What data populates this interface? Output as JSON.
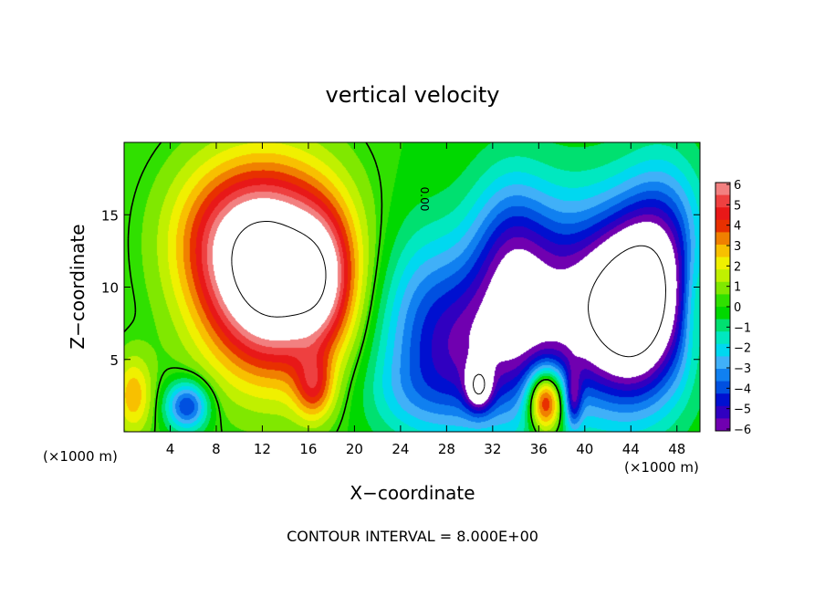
{
  "chart_data": {
    "type": "heatmap",
    "title": "vertical velocity",
    "xlabel": "X−coordinate",
    "ylabel": "Z−coordinate",
    "x_unit_label_left": "(×1000 m)",
    "x_unit_label_right": "(×1000 m)",
    "footer": "CONTOUR INTERVAL = 8.000E+00",
    "xlim": [
      0,
      50
    ],
    "ylim": [
      0,
      20
    ],
    "x_ticks": [
      4,
      8,
      12,
      16,
      20,
      24,
      28,
      32,
      36,
      40,
      44,
      48
    ],
    "y_ticks": [
      5,
      10,
      15
    ],
    "contour_label": "0.00",
    "colorbar": {
      "range": [
        -6,
        6
      ],
      "tick_labels": [
        "6",
        "5",
        "4",
        "3",
        "2",
        "1",
        "0",
        "−1",
        "−2",
        "−3",
        "−4",
        "−5",
        "−6"
      ],
      "colors": [
        "#f28080",
        "#ee4040",
        "#e81818",
        "#e83000",
        "#f08000",
        "#f8c000",
        "#f0f000",
        "#c0f000",
        "#80e800",
        "#30e000",
        "#00d800",
        "#00e070",
        "#00e8c0",
        "#00d8f0",
        "#40b0f8",
        "#1080f0",
        "#0050e0",
        "#0010d0",
        "#3000c0",
        "#7000b0"
      ]
    },
    "field": {
      "background": 0,
      "blobs": [
        {
          "x": 13,
          "z": 11,
          "sx": 4.4,
          "sz": 4.8,
          "amp": 9.5
        },
        {
          "x": 8,
          "z": 14,
          "sx": 3.5,
          "sz": 3.5,
          "amp": 1.8
        },
        {
          "x": 17.3,
          "z": 10.5,
          "sx": 1.8,
          "sz": 3.2,
          "amp": 2.5
        },
        {
          "x": 16.5,
          "z": 3,
          "sx": 1.2,
          "sz": 1.6,
          "amp": 3
        },
        {
          "x": 0.8,
          "z": 2.5,
          "sx": 1.2,
          "sz": 2,
          "amp": 2.8
        },
        {
          "x": 5.5,
          "z": 1.8,
          "sx": 1.3,
          "sz": 1.2,
          "amp": -4.5
        },
        {
          "x": 36.6,
          "z": 2.2,
          "sx": 1.1,
          "sz": 1.6,
          "amp": 7
        },
        {
          "x": 30,
          "z": 5.5,
          "sx": 5,
          "sz": 4,
          "amp": -4.5
        },
        {
          "x": 38,
          "z": 9,
          "sx": 4.5,
          "sz": 5,
          "amp": -4.5
        },
        {
          "x": 33.5,
          "z": 12.5,
          "sx": 2.5,
          "sz": 4,
          "amp": -3
        },
        {
          "x": 44.5,
          "z": 8.5,
          "sx": 3.2,
          "sz": 4.5,
          "amp": -8.5
        },
        {
          "x": 47,
          "z": 14,
          "sx": 2.5,
          "sz": 4,
          "amp": -2.5
        },
        {
          "x": 26,
          "z": 10,
          "sx": 3,
          "sz": 4,
          "amp": -1.5
        },
        {
          "x": 30.8,
          "z": 3,
          "sx": 0.8,
          "sz": 1.1,
          "amp": -4
        },
        {
          "x": 39,
          "z": 2.2,
          "sx": 0.5,
          "sz": 1.4,
          "amp": -3
        },
        {
          "x": 49.5,
          "z": 9,
          "sx": 0.8,
          "sz": 3,
          "amp": 1.5
        },
        {
          "x": 25,
          "z": 2.5,
          "sx": 3,
          "sz": 2,
          "amp": -1
        }
      ]
    }
  }
}
